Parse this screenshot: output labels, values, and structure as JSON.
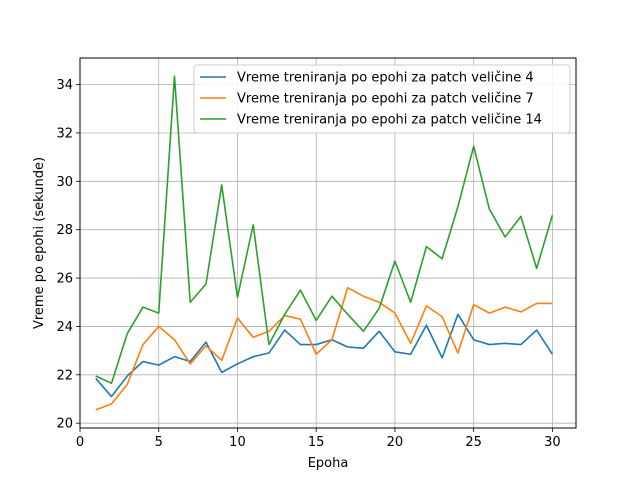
{
  "chart_data": {
    "type": "line",
    "title": "",
    "xlabel": "Epoha",
    "ylabel": "Vreme po epohi (sekunde)",
    "xlim": [
      0,
      31.5
    ],
    "ylim": [
      19.8,
      35.1
    ],
    "xticks": [
      0,
      5,
      10,
      15,
      20,
      25,
      30
    ],
    "yticks": [
      20,
      22,
      24,
      26,
      28,
      30,
      32,
      34
    ],
    "grid": true,
    "legend_position": "top-right",
    "x": [
      1,
      2,
      3,
      4,
      5,
      6,
      7,
      8,
      9,
      10,
      11,
      12,
      13,
      14,
      15,
      16,
      17,
      18,
      19,
      20,
      21,
      22,
      23,
      24,
      25,
      26,
      27,
      28,
      29,
      30
    ],
    "series": [
      {
        "name": "Vreme treniranja po epohi za patch veličine 4",
        "color": "#1f77b4",
        "values": [
          21.85,
          21.1,
          21.95,
          22.55,
          22.4,
          22.75,
          22.55,
          23.35,
          22.1,
          22.45,
          22.75,
          22.9,
          23.85,
          23.25,
          23.25,
          23.45,
          23.15,
          23.1,
          23.8,
          22.95,
          22.85,
          24.05,
          22.7,
          24.5,
          23.45,
          23.25,
          23.3,
          23.25,
          23.85,
          22.85
        ]
      },
      {
        "name": "Vreme treniranja po epohi za patch veličine 7",
        "color": "#ff7f0e",
        "values": [
          20.55,
          20.8,
          21.6,
          23.25,
          24.0,
          23.45,
          22.45,
          23.2,
          22.6,
          24.35,
          23.55,
          23.8,
          24.45,
          24.3,
          22.85,
          23.45,
          25.6,
          25.25,
          25.0,
          24.55,
          23.3,
          24.85,
          24.4,
          22.9,
          24.9,
          24.55,
          24.8,
          24.6,
          24.95,
          24.95
        ]
      },
      {
        "name": "Vreme treniranja po epohi za patch veličine 14",
        "color": "#2ca02c",
        "values": [
          21.95,
          21.65,
          23.7,
          24.8,
          24.55,
          34.35,
          25.0,
          25.75,
          29.85,
          25.2,
          28.2,
          23.25,
          24.5,
          25.5,
          24.25,
          25.25,
          24.5,
          23.8,
          24.75,
          26.7,
          25.0,
          27.3,
          26.8,
          28.95,
          31.45,
          28.85,
          27.7,
          28.55,
          26.4,
          28.6
        ]
      }
    ]
  }
}
